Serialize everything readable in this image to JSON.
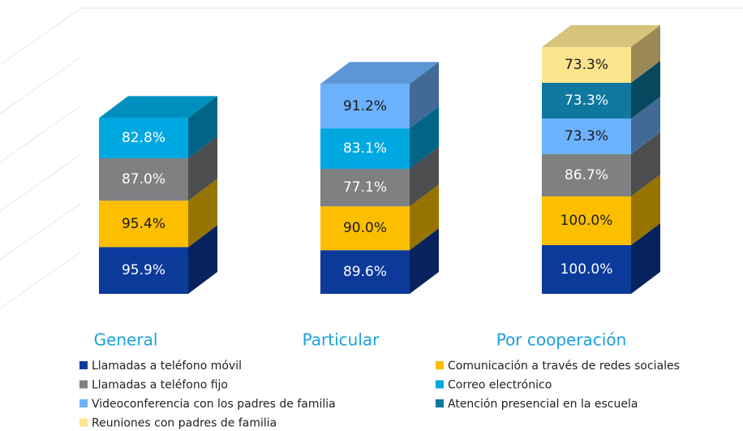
{
  "chart_data": {
    "type": "bar3d_stacked",
    "categories": [
      "General",
      "Particular",
      "Por cooperación"
    ],
    "series": [
      {
        "name": "Llamadas a teléfono móvil",
        "color": "#0b3a9b",
        "values": [
          95.9,
          89.6,
          100.0
        ],
        "value_labels": [
          "95.9%",
          "89.6%",
          "100.0%"
        ]
      },
      {
        "name": "Comunicación a través de redes sociales",
        "color": "#fcbf00",
        "values": [
          95.4,
          90.0,
          100.0
        ],
        "value_labels": [
          "95.4%",
          "90.0%",
          "100.0%"
        ]
      },
      {
        "name": "Llamadas a teléfono fijo",
        "color": "#7f8082",
        "values": [
          87.0,
          77.1,
          86.7
        ],
        "value_labels": [
          "87.0%",
          "77.1%",
          "86.7%"
        ]
      },
      {
        "name": "Correo electrónico",
        "color": "#00a8e1",
        "values": [
          82.8,
          83.1,
          null
        ],
        "value_labels": [
          "82.8%",
          "83.1%",
          null
        ]
      },
      {
        "name": "Videoconferencia con los padres de familia",
        "color": "#6cb1fb",
        "values": [
          null,
          91.2,
          73.3
        ],
        "value_labels": [
          null,
          "91.2%",
          "73.3%"
        ]
      },
      {
        "name": "Atención presencial en la escuela",
        "color": "#0e789e",
        "values": [
          null,
          null,
          73.3
        ],
        "value_labels": [
          null,
          null,
          "73.3%"
        ]
      },
      {
        "name": "Reuniones con padres de familia",
        "color": "#fde58e",
        "values": [
          null,
          null,
          73.3
        ],
        "value_labels": [
          null,
          null,
          "73.3%"
        ]
      }
    ]
  }
}
